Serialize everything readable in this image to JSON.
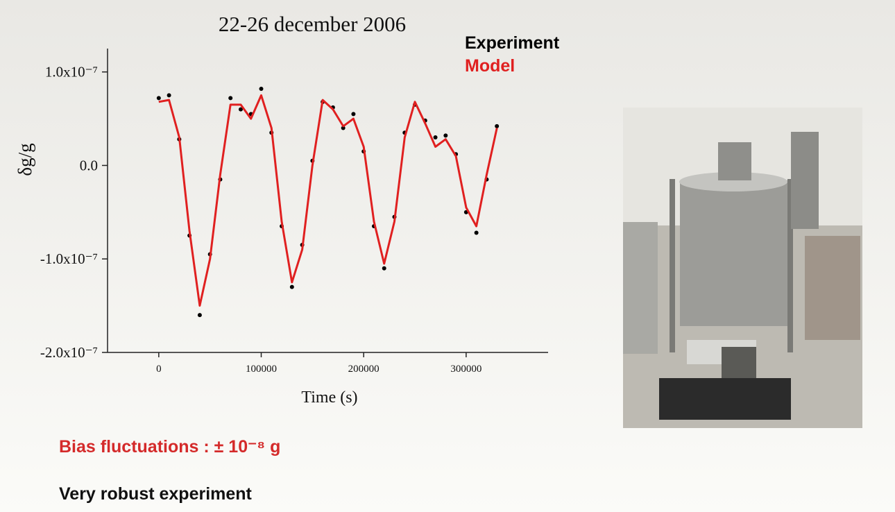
{
  "chart_data": {
    "type": "line",
    "title": "22-26 december 2006",
    "x_label": "Time (s)",
    "y_label": "δg/g",
    "x": [
      0,
      10000,
      20000,
      30000,
      40000,
      50000,
      60000,
      70000,
      80000,
      90000,
      100000,
      110000,
      120000,
      130000,
      140000,
      150000,
      160000,
      170000,
      180000,
      190000,
      200000,
      210000,
      220000,
      230000,
      240000,
      250000,
      260000,
      270000,
      280000,
      290000,
      300000,
      310000,
      320000,
      330000
    ],
    "series": [
      {
        "name": "Experiment",
        "color": "#000000",
        "marker": "dot",
        "values": [
          7.2e-08,
          7.5e-08,
          2.8e-08,
          -7.5e-08,
          -1.6e-07,
          -9.5e-08,
          -1.5e-08,
          7.2e-08,
          6e-08,
          5.5e-08,
          8.2e-08,
          3.5e-08,
          -6.5e-08,
          -1.3e-07,
          -8.5e-08,
          5e-09,
          6.8e-08,
          6.2e-08,
          4e-08,
          5.5e-08,
          1.5e-08,
          -6.5e-08,
          -1.1e-07,
          -5.5e-08,
          3.5e-08,
          6.5e-08,
          4.8e-08,
          3e-08,
          3.2e-08,
          1.2e-08,
          -5e-08,
          -7.2e-08,
          -1.5e-08,
          4.2e-08
        ]
      },
      {
        "name": "Model",
        "color": "#e02020",
        "marker": "line",
        "values": [
          6.8e-08,
          7e-08,
          3e-08,
          -7e-08,
          -1.5e-07,
          -1e-07,
          -1e-08,
          6.5e-08,
          6.5e-08,
          5e-08,
          7.5e-08,
          4e-08,
          -6e-08,
          -1.25e-07,
          -9e-08,
          0.0,
          7e-08,
          6e-08,
          4.2e-08,
          5e-08,
          2e-08,
          -6e-08,
          -1.05e-07,
          -6e-08,
          3e-08,
          6.8e-08,
          4.5e-08,
          2e-08,
          2.8e-08,
          1e-08,
          -4.5e-08,
          -6.5e-08,
          -1e-08,
          4e-08
        ]
      }
    ],
    "xlim": [
      -50000,
      380000
    ],
    "ylim": [
      -2e-07,
      1.25e-07
    ],
    "xticks": [
      0,
      100000,
      200000,
      300000
    ],
    "yticks": [
      {
        "value": 1e-07,
        "label": "1.0x10⁻⁷"
      },
      {
        "value": 0,
        "label": "0.0"
      },
      {
        "value": -1e-07,
        "label": "-1.0x10⁻⁷"
      },
      {
        "value": -2e-07,
        "label": "-2.0x10⁻⁷"
      }
    ],
    "annotations": [
      "Bias fluctuations : ± 10⁻⁸ g",
      "Very robust experiment"
    ]
  }
}
